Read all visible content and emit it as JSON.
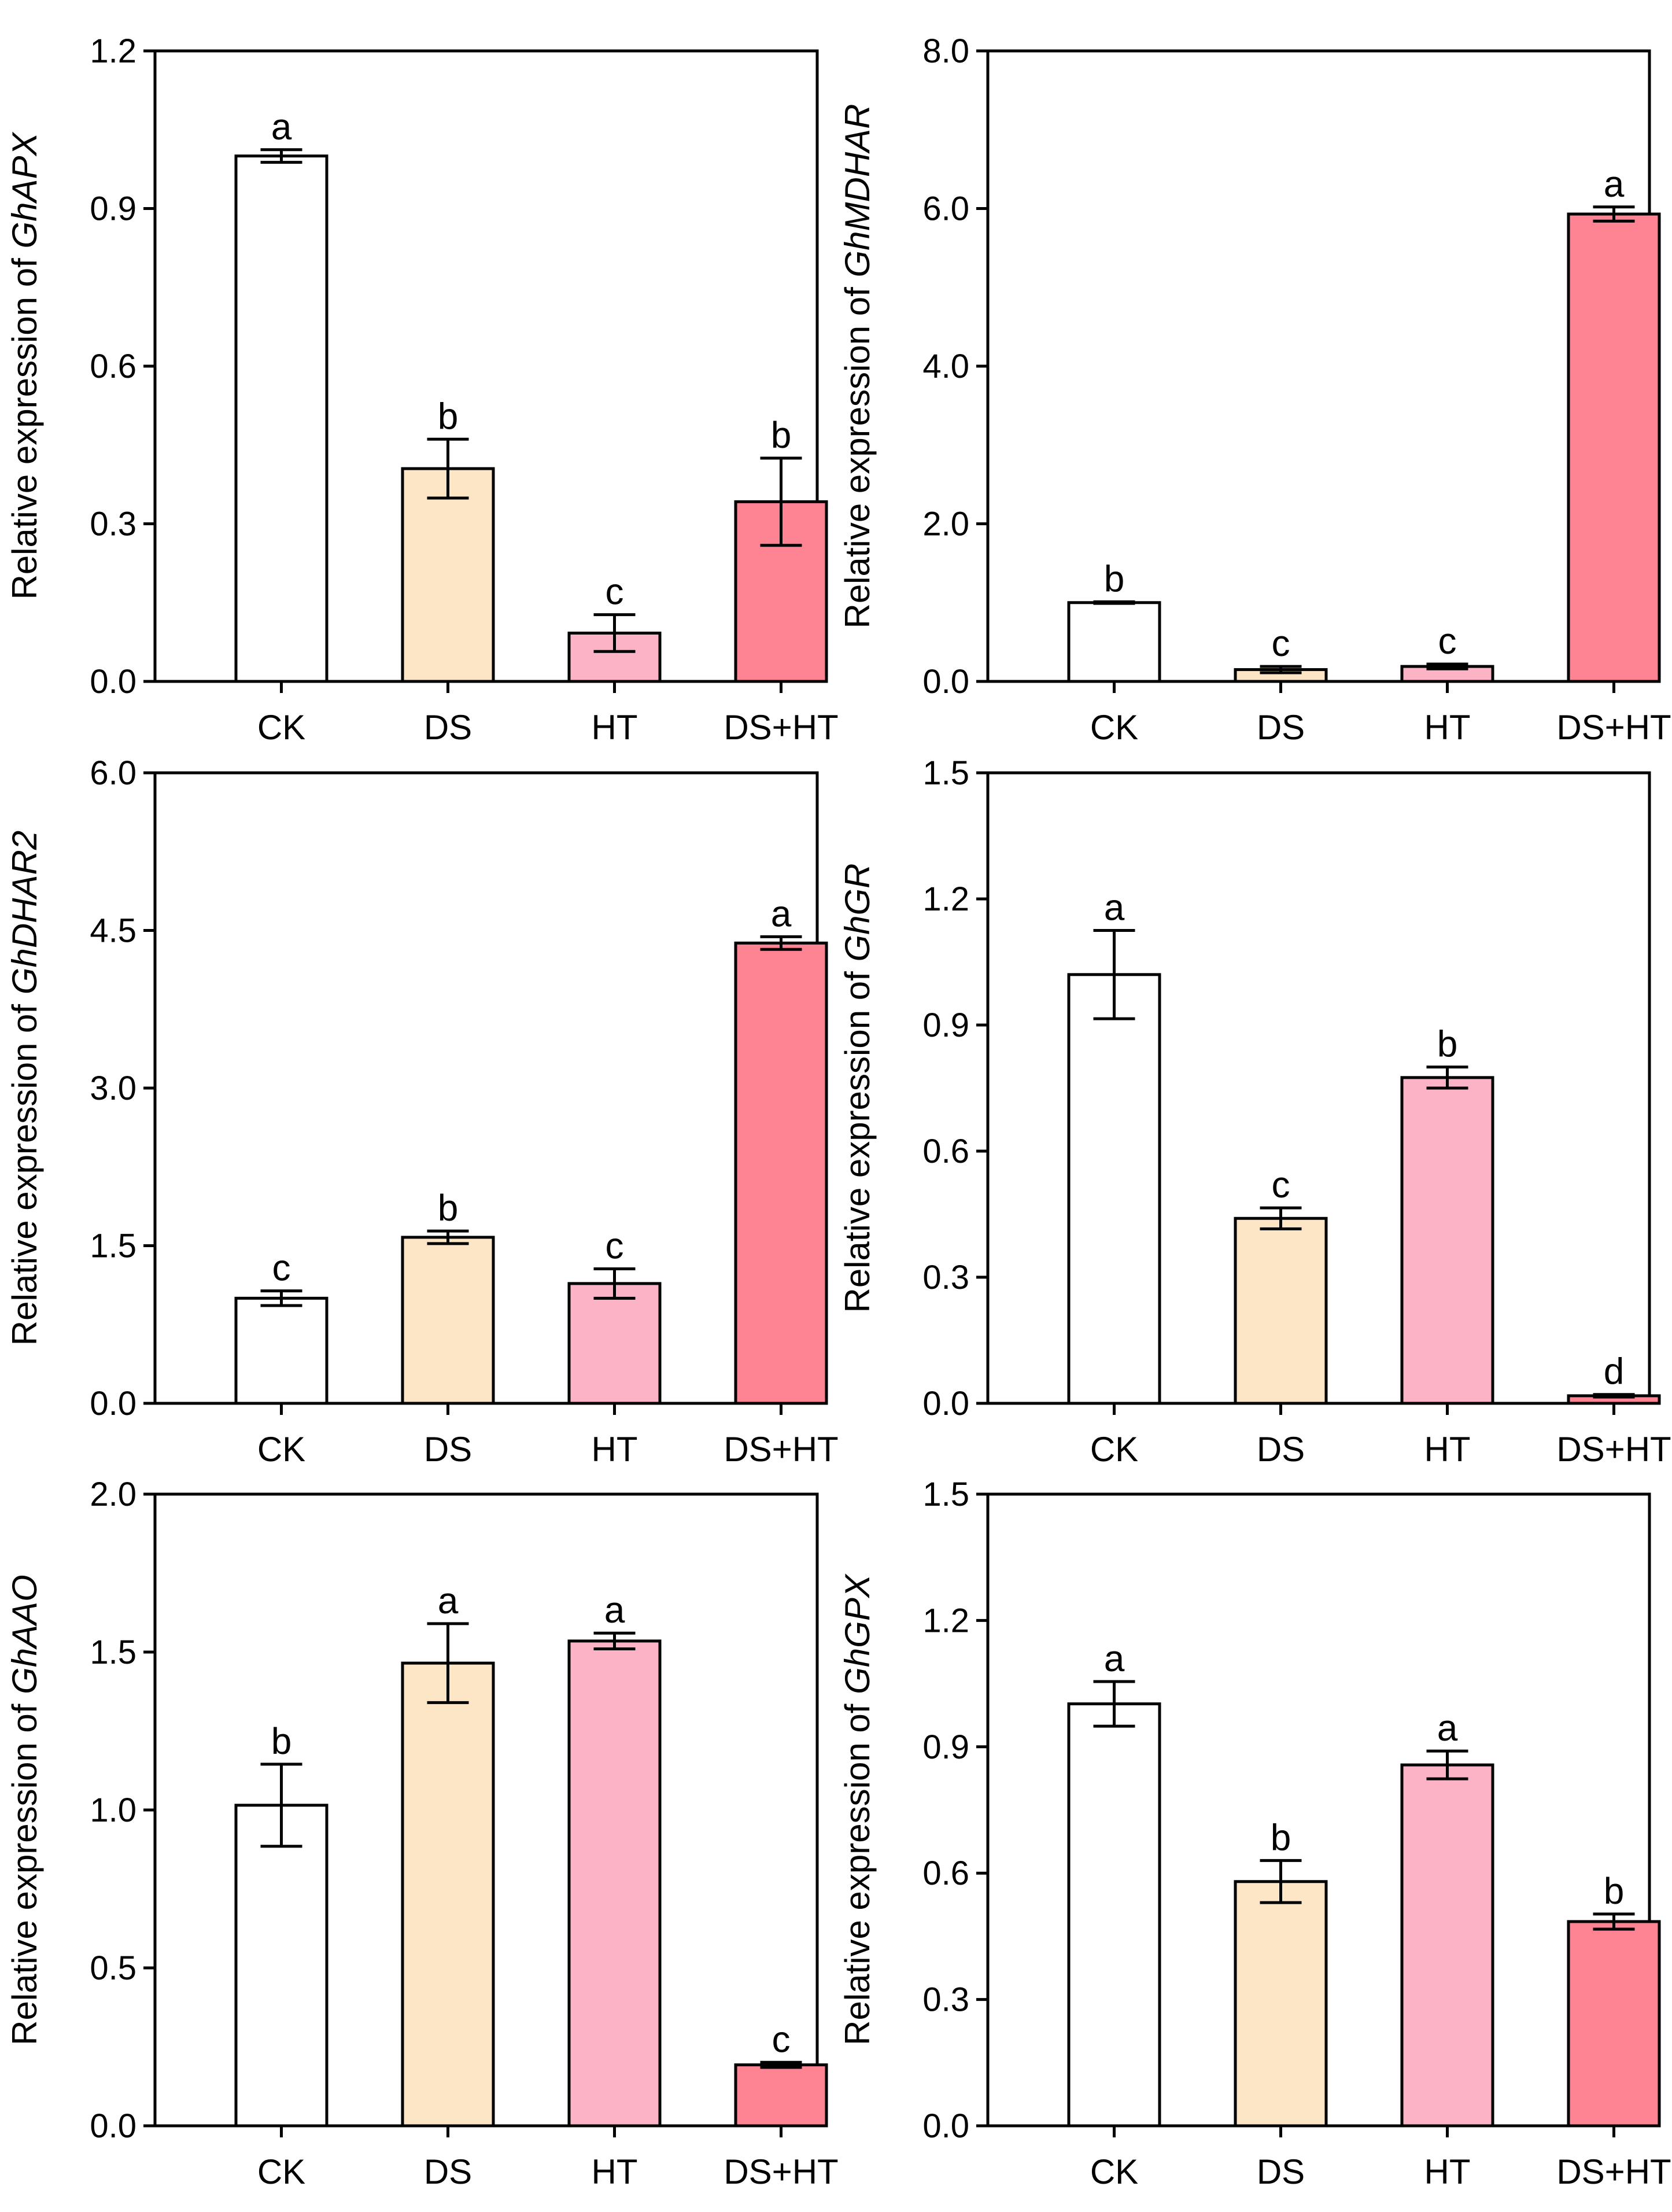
{
  "categories": [
    "CK",
    "DS",
    "HT",
    "DS+HT"
  ],
  "bar_colors": [
    "#ffffff",
    "#fde6c5",
    "#fdb3c6",
    "#fe8494"
  ],
  "axis_label_prefix": "Relative expression of ",
  "chart_data": [
    {
      "type": "bar",
      "gene": "GhAPX",
      "ylabel": "Relative expression of GhAPX",
      "categories": [
        "CK",
        "DS",
        "HT",
        "DS+HT"
      ],
      "values": [
        1.0,
        0.405,
        0.092,
        0.342
      ],
      "errors": [
        0.012,
        0.056,
        0.035,
        0.083
      ],
      "letters": [
        "a",
        "b",
        "c",
        "b"
      ],
      "ylim": [
        0,
        1.2
      ],
      "yticks": [
        "0.0",
        "0.3",
        "0.6",
        "0.9",
        "1.2"
      ]
    },
    {
      "type": "bar",
      "gene": "GhMDHAR",
      "ylabel": "Relative expression of GhMDHAR",
      "categories": [
        "CK",
        "DS",
        "HT",
        "DS+HT"
      ],
      "values": [
        1.0,
        0.15,
        0.19,
        5.93
      ],
      "errors": [
        0.01,
        0.04,
        0.03,
        0.09
      ],
      "letters": [
        "b",
        "c",
        "c",
        "a"
      ],
      "ylim": [
        0,
        8.0
      ],
      "yticks": [
        "0.0",
        "2.0",
        "4.0",
        "6.0",
        "8.0"
      ]
    },
    {
      "type": "bar",
      "gene": "GhDHAR2",
      "ylabel": "Relative expression of GhDHAR2",
      "categories": [
        "CK",
        "DS",
        "HT",
        "DS+HT"
      ],
      "values": [
        1.0,
        1.58,
        1.14,
        4.38
      ],
      "errors": [
        0.07,
        0.06,
        0.14,
        0.06
      ],
      "letters": [
        "c",
        "b",
        "c",
        "a"
      ],
      "ylim": [
        0,
        6.0
      ],
      "yticks": [
        "0.0",
        "1.5",
        "3.0",
        "4.5",
        "6.0"
      ]
    },
    {
      "type": "bar",
      "gene": "GhGR",
      "ylabel": "Relative expression of GhGR",
      "categories": [
        "CK",
        "DS",
        "HT",
        "DS+HT"
      ],
      "values": [
        1.02,
        0.44,
        0.775,
        0.018
      ],
      "errors": [
        0.105,
        0.025,
        0.025,
        0.003
      ],
      "letters": [
        "a",
        "c",
        "b",
        "d"
      ],
      "ylim": [
        0,
        1.5
      ],
      "yticks": [
        "0.0",
        "0.3",
        "0.6",
        "0.9",
        "1.2",
        "1.5"
      ]
    },
    {
      "type": "bar",
      "gene": "GhAAO",
      "ylabel": "Relative expression of GhAAO",
      "categories": [
        "CK",
        "DS",
        "HT",
        "DS+HT"
      ],
      "values": [
        1.015,
        1.465,
        1.535,
        0.193
      ],
      "errors": [
        0.13,
        0.125,
        0.025,
        0.008
      ],
      "letters": [
        "b",
        "a",
        "a",
        "c"
      ],
      "ylim": [
        0,
        2.0
      ],
      "yticks": [
        "0.0",
        "0.5",
        "1.0",
        "1.5",
        "2.0"
      ]
    },
    {
      "type": "bar",
      "gene": "GhGPX",
      "ylabel": "Relative expression of GhGPX",
      "categories": [
        "CK",
        "DS",
        "HT",
        "DS+HT"
      ],
      "values": [
        1.002,
        0.58,
        0.857,
        0.485
      ],
      "errors": [
        0.053,
        0.05,
        0.033,
        0.018
      ],
      "letters": [
        "a",
        "b",
        "a",
        "b"
      ],
      "ylim": [
        0,
        1.5
      ],
      "yticks": [
        "0.0",
        "0.3",
        "0.6",
        "0.9",
        "1.2",
        "1.5"
      ]
    }
  ]
}
